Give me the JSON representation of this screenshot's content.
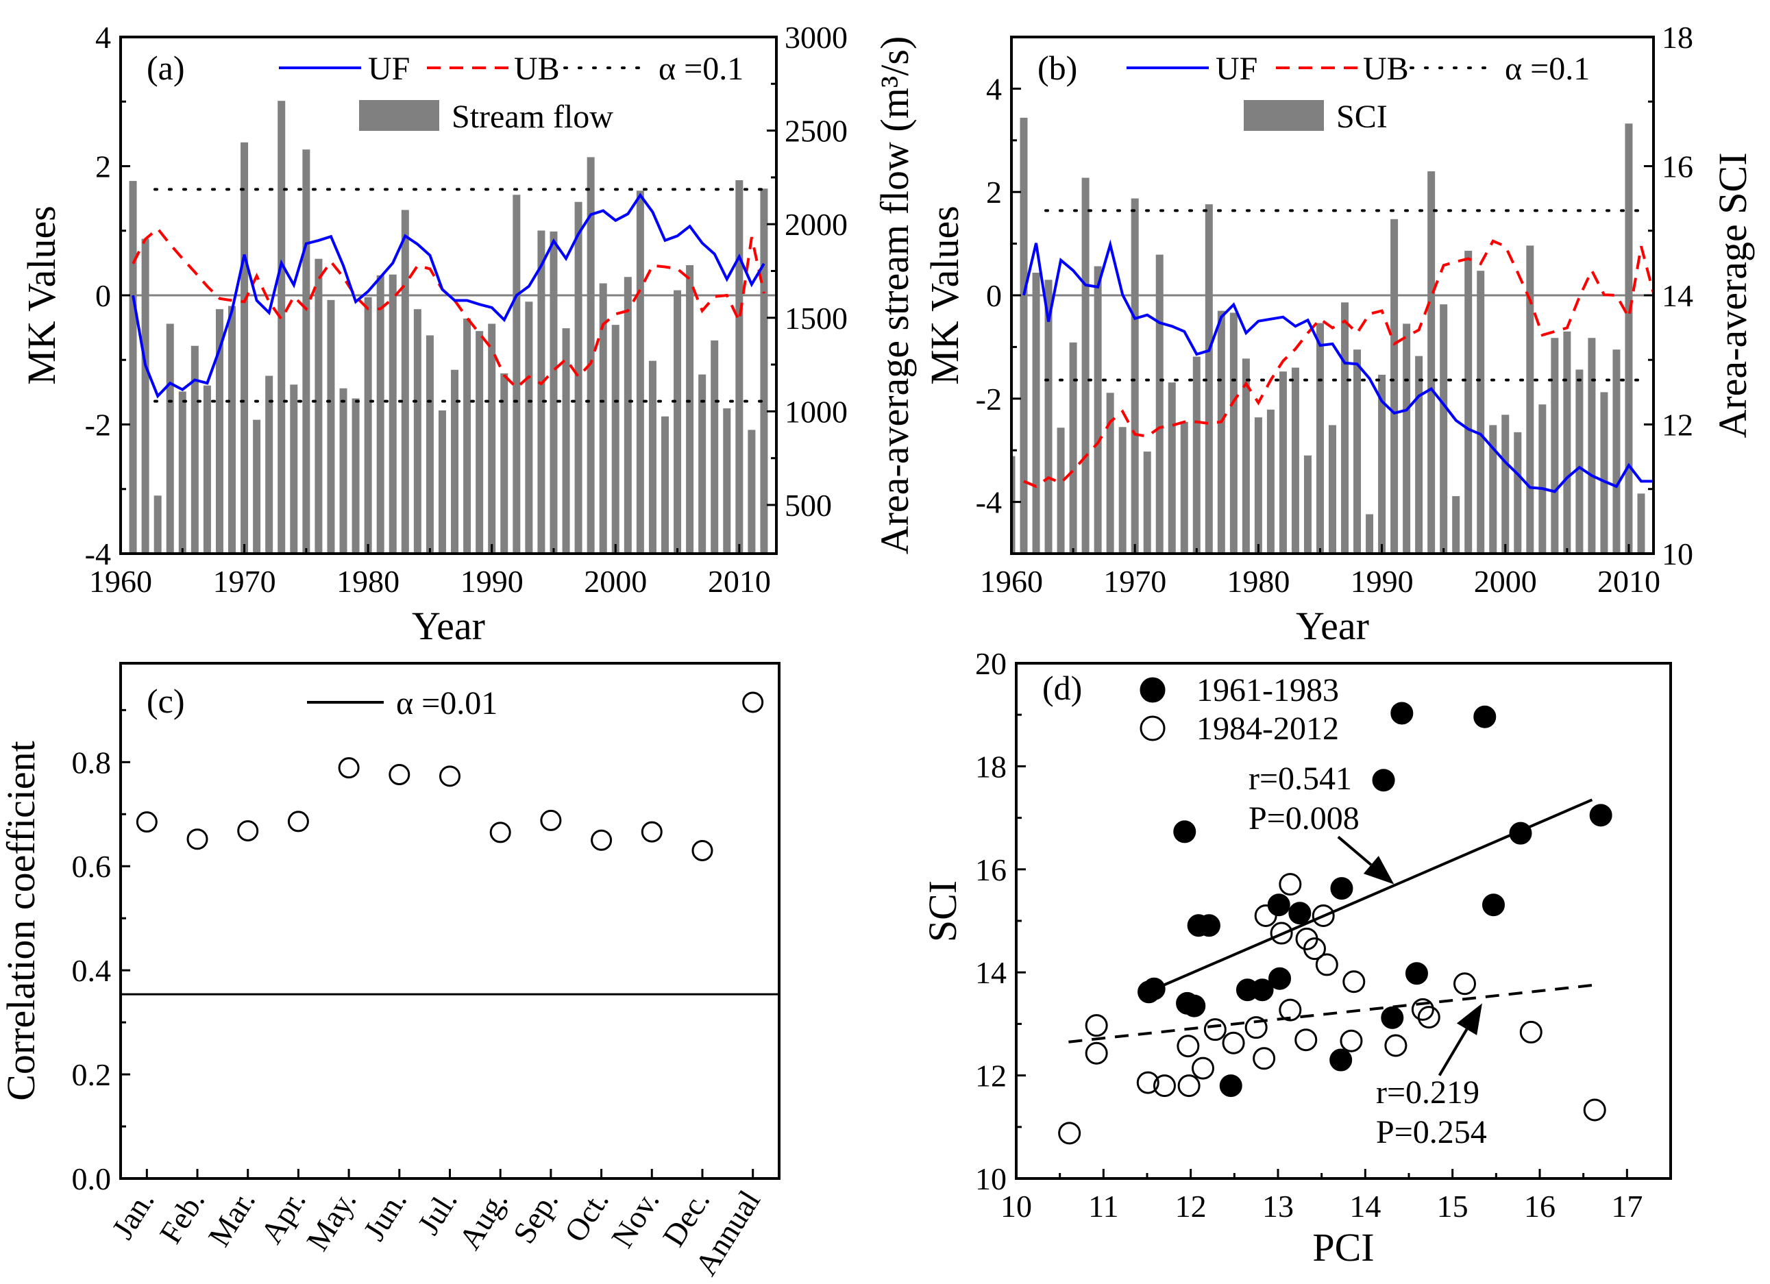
{
  "chart_data": [
    {
      "panel_label": "(a)",
      "type": "bar+line",
      "xlabel": "Year",
      "ylabel": "MK Values",
      "ylabel_right": "Area-average stream flow (m³/s)",
      "xlim": [
        1960,
        2013
      ],
      "ylim": [
        -4,
        4
      ],
      "ylim_right": [
        240,
        3000
      ],
      "xticks": [
        "1960",
        "1970",
        "1980",
        "1990",
        "2000",
        "2010"
      ],
      "yticks": [
        "-4",
        "-2",
        "0",
        "2",
        "4"
      ],
      "yticks_right": [
        "500",
        "1000",
        "1500",
        "2000",
        "2500",
        "3000"
      ],
      "alpha_level": 1.64,
      "legend": {
        "uf": "UF",
        "ub": "UB",
        "alpha": "α =0.1",
        "bars": "Stream flow"
      },
      "bar_start_year": 1961,
      "line_start_year": 1961,
      "bars": [
        2231,
        1922,
        550,
        1468,
        1106,
        1350,
        1138,
        1546,
        1563,
        2437,
        955,
        1190,
        2659,
        1143,
        2399,
        1815,
        1595,
        1123,
        1069,
        1610,
        1727,
        1731,
        2076,
        1546,
        1406,
        1005,
        1222,
        1496,
        1429,
        1468,
        1203,
        2157,
        1586,
        1966,
        1961,
        1444,
        2119,
        2358,
        1684,
        1462,
        1718,
        2179,
        1270,
        973,
        1647,
        1781,
        1197,
        1379,
        1016,
        2235,
        901,
        2190
      ],
      "uf": [
        0,
        -1.08,
        -1.56,
        -1.36,
        -1.46,
        -1.31,
        -1.36,
        -0.83,
        -0.24,
        0.63,
        -0.08,
        -0.27,
        0.5,
        0.16,
        0.8,
        0.85,
        0.91,
        0.46,
        -0.1,
        0.06,
        0.28,
        0.5,
        0.92,
        0.79,
        0.62,
        0.09,
        -0.08,
        -0.08,
        -0.14,
        -0.19,
        -0.38,
        0,
        0.14,
        0.46,
        0.84,
        0.57,
        0.95,
        1.25,
        1.31,
        1.16,
        1.26,
        1.55,
        1.29,
        0.85,
        0.92,
        1.07,
        0.81,
        0.64,
        0.25,
        0.6,
        0.17,
        0.49
      ],
      "ub": [
        0.49,
        0.87,
        1.03,
        0.79,
        0.57,
        0.36,
        0.14,
        -0.05,
        -0.08,
        -0.1,
        0.3,
        -0.1,
        -0.37,
        -0.02,
        -0.21,
        0.25,
        0.52,
        0.28,
        -0.02,
        -0.21,
        -0.21,
        -0.05,
        0.17,
        0.46,
        0.41,
        0.09,
        -0.08,
        -0.35,
        -0.59,
        -0.83,
        -1.24,
        -1.43,
        -1.26,
        -1.37,
        -1.16,
        -0.99,
        -1.26,
        -1.05,
        -0.45,
        -0.29,
        -0.24,
        0.09,
        0.46,
        0.44,
        0.41,
        0.25,
        -0.24,
        -0.02,
        0,
        -0.4,
        0.9,
        0.03
      ]
    },
    {
      "panel_label": "(b)",
      "type": "bar+line",
      "xlabel": "Year",
      "ylabel": "MK Values",
      "ylabel_right": "Area-average SCI",
      "xlim": [
        1960,
        2012
      ],
      "ylim": [
        -5,
        5
      ],
      "ylim_right": [
        10,
        18
      ],
      "xticks": [
        "1960",
        "1970",
        "1980",
        "1990",
        "2000",
        "2010"
      ],
      "yticks": [
        "-4",
        "-2",
        "0",
        "2",
        "4"
      ],
      "yticks_right": [
        "10",
        "12",
        "14",
        "16",
        "18"
      ],
      "alpha_level": 1.64,
      "legend": {
        "uf": "UF",
        "ub": "UB",
        "alpha": "α =0.1",
        "bars": "SCI"
      },
      "bar_start_year": 1960,
      "line_start_year": 1961,
      "bars": [
        11.51,
        16.75,
        14.35,
        14.24,
        11.95,
        13.27,
        15.82,
        14.45,
        12.49,
        11.96,
        15.5,
        11.58,
        14.63,
        12.65,
        12.04,
        13.05,
        15.41,
        13.76,
        13.73,
        13.02,
        12.11,
        12.23,
        12.82,
        12.88,
        11.52,
        13.57,
        11.99,
        13.89,
        13.16,
        10.61,
        12.77,
        15.18,
        13.56,
        13.06,
        15.92,
        13.86,
        10.89,
        14.69,
        14.38,
        11.99,
        12.15,
        11.88,
        14.77,
        12.31,
        13.34,
        13.44,
        12.85,
        13.34,
        12.5,
        13.16,
        16.66,
        10.93
      ],
      "uf": [
        0,
        1.01,
        -0.51,
        0.68,
        0.48,
        0.2,
        0.16,
        0.98,
        0.01,
        -0.45,
        -0.38,
        -0.53,
        -0.6,
        -0.7,
        -1.14,
        -1.07,
        -0.42,
        -0.18,
        -0.73,
        -0.5,
        -0.46,
        -0.42,
        -0.6,
        -0.48,
        -0.97,
        -0.94,
        -1.31,
        -1.33,
        -1.61,
        -2.05,
        -2.28,
        -2.22,
        -1.95,
        -1.81,
        -2.11,
        -2.42,
        -2.59,
        -2.69,
        -2.96,
        -3.23,
        -3.46,
        -3.72,
        -3.74,
        -3.8,
        -3.53,
        -3.33,
        -3.49,
        -3.6,
        -3.7,
        -3.29,
        -3.6,
        -3.6
      ],
      "ub": [
        -3.6,
        -3.7,
        -3.53,
        -3.63,
        -3.39,
        -3.12,
        -2.86,
        -2.45,
        -2.25,
        -2.69,
        -2.73,
        -2.56,
        -2.52,
        -2.45,
        -2.45,
        -2.48,
        -2.45,
        -2.05,
        -1.71,
        -2.08,
        -1.64,
        -1.27,
        -1.04,
        -0.73,
        -0.46,
        -0.63,
        -0.5,
        -0.73,
        -0.36,
        -0.3,
        -0.94,
        -0.8,
        -0.67,
        -0.03,
        0.58,
        0.65,
        0.71,
        0.61,
        1.05,
        0.95,
        0.44,
        -0.09,
        -0.77,
        -0.7,
        -0.63,
        -0.03,
        0.48,
        0.01,
        0,
        -0.43,
        0.95,
        0.04
      ]
    },
    {
      "panel_label": "(c)",
      "type": "scatter",
      "xlabel": "",
      "ylabel": "Correlation coefficient",
      "ylim": [
        0,
        0.99
      ],
      "yticks": [
        "0.0",
        "0.2",
        "0.4",
        "0.6",
        "0.8"
      ],
      "categories": [
        "Jan.",
        "Feb.",
        "Mar.",
        "Apr.",
        "May.",
        "Jun.",
        "Jul.",
        "Aug.",
        "Sep.",
        "Oct.",
        "Nov.",
        "Dec.",
        "Annual"
      ],
      "values": [
        0.685,
        0.652,
        0.668,
        0.686,
        0.789,
        0.776,
        0.773,
        0.665,
        0.688,
        0.65,
        0.666,
        0.63,
        0.915
      ],
      "threshold": 0.354,
      "legend": {
        "threshold": "α =0.01"
      }
    },
    {
      "panel_label": "(d)",
      "type": "scatter",
      "xlabel": "PCI",
      "ylabel": "SCI",
      "xlim": [
        10,
        17.5
      ],
      "ylim": [
        10,
        20
      ],
      "xticks": [
        "10",
        "11",
        "12",
        "13",
        "14",
        "15",
        "16",
        "17"
      ],
      "yticks": [
        "10",
        "12",
        "14",
        "16",
        "18",
        "20"
      ],
      "series": [
        {
          "name": "1961-1983",
          "marker": "filled",
          "points": [
            [
              11.52,
              13.62
            ],
            [
              11.58,
              13.68
            ],
            [
              11.93,
              16.73
            ],
            [
              11.96,
              13.4
            ],
            [
              12.04,
              13.35
            ],
            [
              12.09,
              14.91
            ],
            [
              12.21,
              14.91
            ],
            [
              12.46,
              11.8
            ],
            [
              12.65,
              13.66
            ],
            [
              12.82,
              13.66
            ],
            [
              13.01,
              15.31
            ],
            [
              13.02,
              13.88
            ],
            [
              13.25,
              15.15
            ],
            [
              13.72,
              12.3
            ],
            [
              13.73,
              15.63
            ],
            [
              14.21,
              17.73
            ],
            [
              14.31,
              13.12
            ],
            [
              14.42,
              19.03
            ],
            [
              14.59,
              13.98
            ],
            [
              15.37,
              18.96
            ],
            [
              15.47,
              15.31
            ],
            [
              15.78,
              16.7
            ],
            [
              16.7,
              17.05
            ]
          ],
          "fit": [
            [
              11.55,
              13.65
            ],
            [
              16.6,
              17.35
            ]
          ],
          "r_label": "r=0.541",
          "p_label": "P=0.008",
          "arrow": [
            [
              13.69,
              16.63
            ],
            [
              14.33,
              15.71
            ]
          ]
        },
        {
          "name": "1984-2012",
          "marker": "open",
          "points": [
            [
              10.61,
              10.88
            ],
            [
              10.92,
              12.43
            ],
            [
              10.92,
              12.97
            ],
            [
              11.51,
              11.86
            ],
            [
              11.7,
              11.8
            ],
            [
              11.98,
              11.8
            ],
            [
              11.97,
              12.57
            ],
            [
              12.14,
              12.14
            ],
            [
              12.28,
              12.89
            ],
            [
              12.49,
              12.63
            ],
            [
              12.75,
              12.93
            ],
            [
              12.84,
              12.33
            ],
            [
              12.86,
              15.1
            ],
            [
              13.04,
              14.76
            ],
            [
              13.14,
              15.71
            ],
            [
              13.14,
              13.27
            ],
            [
              13.32,
              12.69
            ],
            [
              13.33,
              14.65
            ],
            [
              13.42,
              14.46
            ],
            [
              13.52,
              15.1
            ],
            [
              13.56,
              14.15
            ],
            [
              13.84,
              12.67
            ],
            [
              13.87,
              13.82
            ],
            [
              14.35,
              12.58
            ],
            [
              14.66,
              13.28
            ],
            [
              14.73,
              13.13
            ],
            [
              15.14,
              13.78
            ],
            [
              15.9,
              12.84
            ],
            [
              16.63,
              11.33
            ]
          ],
          "fit": [
            [
              10.6,
              12.65
            ],
            [
              16.6,
              13.75
            ]
          ],
          "r_label": "r=0.219",
          "p_label": "P=0.254",
          "arrow": [
            [
              14.85,
              12.0
            ],
            [
              15.34,
              13.4
            ]
          ]
        }
      ]
    }
  ],
  "colors": {
    "uf": "#0000ff",
    "ub": "#ff0000",
    "bars": "#808080",
    "zero_line": "#808080",
    "axis": "#000000"
  }
}
